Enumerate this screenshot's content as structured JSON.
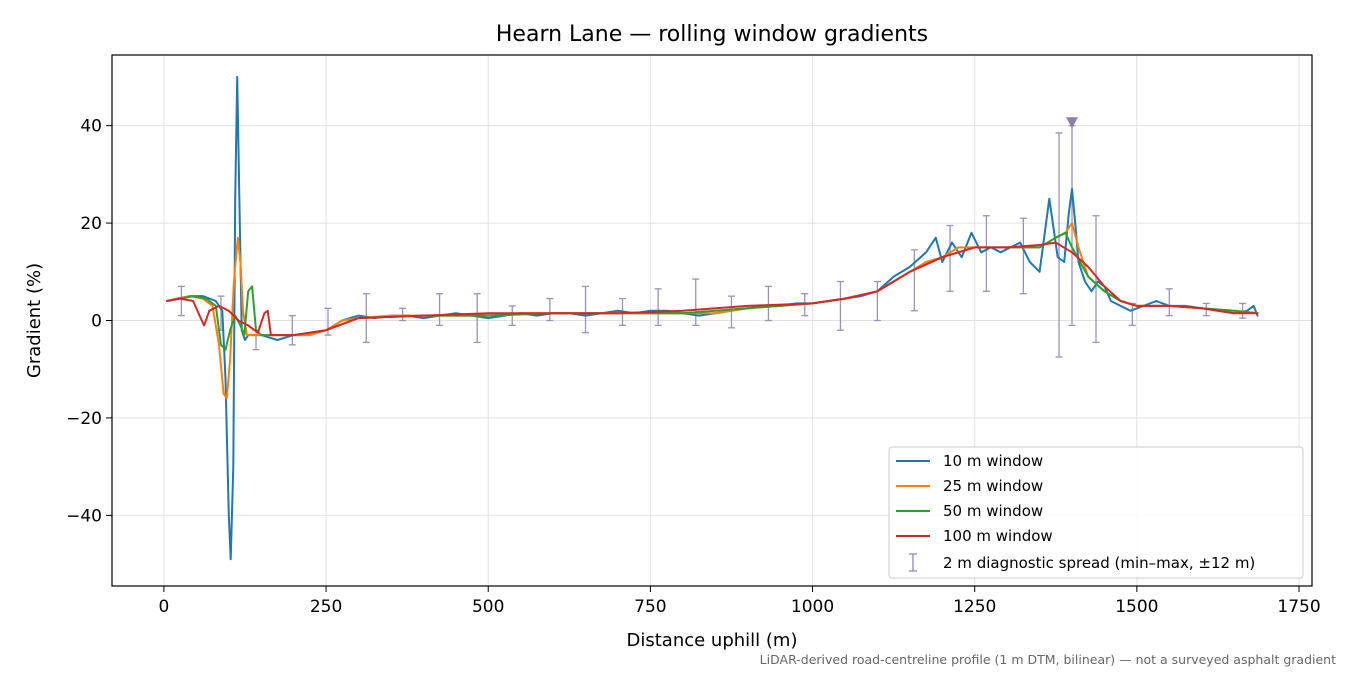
{
  "caption": "LiDAR-derived road-centreline profile (1 m DTM, bilinear) — not a surveyed asphalt gradient",
  "chart_data": {
    "type": "line",
    "title": "Hearn Lane — rolling window gradients",
    "xlabel": "Distance uphill (m)",
    "ylabel": "Gradient (%)",
    "xlim": [
      -80,
      1770
    ],
    "ylim": [
      -54.5,
      54.5
    ],
    "xticks": [
      0,
      250,
      500,
      750,
      1000,
      1250,
      1500,
      1750
    ],
    "yticks": [
      -40,
      -20,
      0,
      20,
      40
    ],
    "ytick_labels": [
      "−40",
      "−20",
      "0",
      "20",
      "40"
    ],
    "grid": true,
    "legend_position": "lower-right",
    "series": [
      {
        "name": "10 m window",
        "color": "#1f77b4",
        "x": [
          5,
          20,
          40,
          60,
          80,
          90,
          95,
          100,
          103,
          107,
          110,
          113,
          117,
          120,
          125,
          130,
          150,
          175,
          200,
          225,
          250,
          275,
          300,
          325,
          350,
          375,
          400,
          425,
          450,
          475,
          500,
          525,
          550,
          575,
          600,
          625,
          650,
          675,
          700,
          725,
          750,
          775,
          800,
          825,
          850,
          875,
          900,
          925,
          950,
          975,
          1000,
          1025,
          1050,
          1075,
          1100,
          1125,
          1150,
          1175,
          1190,
          1200,
          1215,
          1230,
          1245,
          1260,
          1275,
          1290,
          1305,
          1320,
          1335,
          1350,
          1365,
          1378,
          1388,
          1395,
          1400,
          1405,
          1410,
          1420,
          1430,
          1440,
          1450,
          1460,
          1475,
          1490,
          1510,
          1530,
          1550,
          1575,
          1600,
          1625,
          1650,
          1670,
          1680,
          1686
        ],
        "y": [
          4,
          4.5,
          5,
          5,
          4,
          2,
          -12,
          -40,
          -49,
          -30,
          25,
          50,
          20,
          -2,
          -4,
          -3,
          -3,
          -4,
          -3,
          -3,
          -2,
          0,
          1,
          0.5,
          1,
          1,
          0.5,
          1,
          1.5,
          1,
          0.5,
          1,
          1.5,
          1,
          1.5,
          1.5,
          1,
          1.5,
          2,
          1.5,
          2,
          2,
          1.5,
          1,
          1.5,
          2,
          2.5,
          3,
          3,
          3.5,
          3.5,
          4,
          4.5,
          5,
          6,
          9,
          11,
          14,
          17,
          12,
          16,
          13,
          18,
          14,
          15,
          14,
          15,
          16,
          12,
          10,
          25,
          13,
          12,
          22,
          27,
          20,
          12,
          8,
          6,
          8,
          7,
          4,
          3,
          2,
          3,
          4,
          3,
          3,
          2.5,
          2,
          1.5,
          2,
          3,
          1
        ]
      },
      {
        "name": "25 m window",
        "color": "#ff7f0e",
        "x": [
          5,
          20,
          40,
          60,
          75,
          85,
          92,
          97,
          102,
          108,
          114,
          118,
          122,
          128,
          135,
          150,
          175,
          200,
          225,
          250,
          275,
          300,
          350,
          400,
          450,
          500,
          550,
          600,
          650,
          700,
          750,
          800,
          850,
          900,
          950,
          1000,
          1050,
          1100,
          1150,
          1175,
          1200,
          1225,
          1250,
          1275,
          1300,
          1325,
          1350,
          1375,
          1390,
          1400,
          1410,
          1425,
          1450,
          1475,
          1500,
          1550,
          1600,
          1650,
          1686
        ],
        "y": [
          4,
          4.5,
          5,
          4.5,
          3,
          -5,
          -15,
          -16,
          -8,
          8,
          17,
          12,
          2,
          -3,
          -3,
          -3,
          -3,
          -3,
          -3,
          -2,
          0,
          0.5,
          1,
          1,
          1,
          1,
          1.5,
          1.5,
          1.5,
          1.5,
          1.5,
          1.5,
          1.5,
          2.5,
          3,
          3.5,
          4.5,
          6,
          10,
          12,
          13,
          15,
          15,
          15,
          15,
          15,
          15,
          17,
          18,
          20,
          15,
          9,
          6,
          4,
          3,
          3,
          2.5,
          2,
          1.5
        ]
      },
      {
        "name": "50 m window",
        "color": "#2ca02c",
        "x": [
          5,
          25,
          45,
          65,
          80,
          88,
          95,
          102,
          110,
          118,
          124,
          130,
          136,
          142,
          150,
          175,
          200,
          250,
          300,
          400,
          500,
          600,
          700,
          800,
          900,
          1000,
          1050,
          1100,
          1150,
          1200,
          1250,
          1300,
          1350,
          1375,
          1390,
          1400,
          1425,
          1450,
          1475,
          1500,
          1550,
          1600,
          1650,
          1686
        ],
        "y": [
          4,
          4.5,
          5,
          4.5,
          3,
          -5,
          -6,
          -2,
          1,
          -1,
          -3,
          6,
          7,
          -2,
          -3,
          -3,
          -3,
          -2,
          0.5,
          1,
          1,
          1.5,
          1.5,
          1.5,
          2.5,
          3.5,
          4.5,
          6,
          10,
          13,
          15,
          15,
          15,
          17,
          18,
          15,
          9,
          6,
          4,
          3,
          3,
          2.5,
          2,
          1.5
        ]
      },
      {
        "name": "100 m window",
        "color": "#d62728",
        "x": [
          5,
          25,
          45,
          55,
          62,
          70,
          85,
          100,
          115,
          130,
          145,
          155,
          160,
          165,
          175,
          200,
          250,
          300,
          400,
          500,
          600,
          700,
          800,
          900,
          1000,
          1050,
          1100,
          1150,
          1200,
          1250,
          1300,
          1350,
          1375,
          1400,
          1425,
          1450,
          1475,
          1500,
          1550,
          1600,
          1650,
          1686
        ],
        "y": [
          4,
          4.5,
          4,
          1,
          -1,
          2,
          3,
          2,
          0,
          -1,
          -2.5,
          1.5,
          2,
          -3,
          -3,
          -3,
          -2,
          0.5,
          1,
          1.5,
          1.5,
          1.5,
          2,
          3,
          3.5,
          4.5,
          6,
          10,
          13,
          15,
          15,
          15.5,
          16,
          14,
          11,
          7,
          4,
          3,
          3,
          2.5,
          1.5,
          1.5
        ]
      }
    ],
    "diagnostic_spread": {
      "label": "2 m diagnostic spread (min–max, ±12 m)",
      "color": "#9a92b8",
      "points": [
        {
          "x": 27,
          "low": 1,
          "high": 7
        },
        {
          "x": 88,
          "low": -2,
          "high": 5
        },
        {
          "x": 142,
          "low": -6,
          "high": -2
        },
        {
          "x": 198,
          "low": -5,
          "high": 1
        },
        {
          "x": 253,
          "low": -3,
          "high": 2.5
        },
        {
          "x": 312,
          "low": -4.5,
          "high": 5.5
        },
        {
          "x": 368,
          "low": 0,
          "high": 2.5
        },
        {
          "x": 425,
          "low": -1,
          "high": 5.5
        },
        {
          "x": 483,
          "low": -4.5,
          "high": 5.5
        },
        {
          "x": 537,
          "low": -1,
          "high": 3
        },
        {
          "x": 595,
          "low": 0,
          "high": 4.5
        },
        {
          "x": 650,
          "low": -2.5,
          "high": 7
        },
        {
          "x": 707,
          "low": -1,
          "high": 4.5
        },
        {
          "x": 762,
          "low": -1,
          "high": 6.5
        },
        {
          "x": 820,
          "low": -1,
          "high": 8.5
        },
        {
          "x": 875,
          "low": -1.5,
          "high": 5
        },
        {
          "x": 932,
          "low": 0,
          "high": 7
        },
        {
          "x": 988,
          "low": 1,
          "high": 5.5
        },
        {
          "x": 1043,
          "low": -2,
          "high": 8
        },
        {
          "x": 1100,
          "low": 0,
          "high": 8
        },
        {
          "x": 1157,
          "low": 2,
          "high": 14.5
        },
        {
          "x": 1212,
          "low": 6,
          "high": 19.5
        },
        {
          "x": 1268,
          "low": 6,
          "high": 21.5
        },
        {
          "x": 1325,
          "low": 5.5,
          "high": 21
        },
        {
          "x": 1380,
          "low": -7.5,
          "high": 38.5
        },
        {
          "x": 1400,
          "low": -1,
          "high": 40
        },
        {
          "x": 1437,
          "low": -4.5,
          "high": 21.5
        },
        {
          "x": 1493,
          "low": -1,
          "high": 3.5
        },
        {
          "x": 1550,
          "low": 1,
          "high": 6.5
        },
        {
          "x": 1607,
          "low": 1,
          "high": 3.5
        },
        {
          "x": 1663,
          "low": 0.5,
          "high": 3.5
        }
      ]
    },
    "peak_marker": {
      "x": 1400,
      "y": 40.7,
      "color": "#8d7fae"
    }
  }
}
